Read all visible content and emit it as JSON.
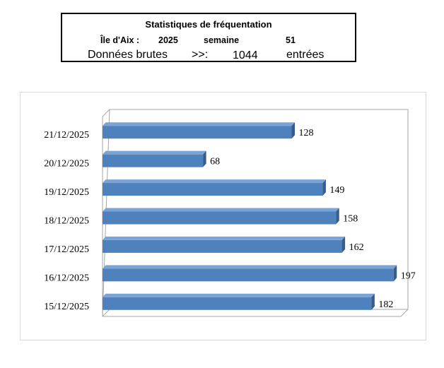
{
  "header": {
    "title": "Statistiques de  fréquentation",
    "location": "Île d'Aix :",
    "year": "2025",
    "week_label": "semaine",
    "week": "51",
    "raw_label": "Données brutes",
    "arrow": ">>:",
    "total": "1044",
    "unit": "entrées"
  },
  "chart_data": {
    "type": "bar",
    "orientation": "horizontal",
    "three_d": true,
    "categories": [
      "21/12/2025",
      "20/12/2025",
      "19/12/2025",
      "18/12/2025",
      "17/12/2025",
      "16/12/2025",
      "15/12/2025"
    ],
    "values": [
      128,
      68,
      149,
      158,
      162,
      197,
      182
    ],
    "title": "",
    "xlabel": "",
    "ylabel": "",
    "xlim": [
      0,
      200
    ],
    "grid": false,
    "legend": "none",
    "data_labels": true,
    "colors": {
      "bar_front": "#4f81bd",
      "bar_top": "#7aa3d6",
      "bar_side": "#385d8a",
      "wall": "#a6a6a6"
    }
  }
}
